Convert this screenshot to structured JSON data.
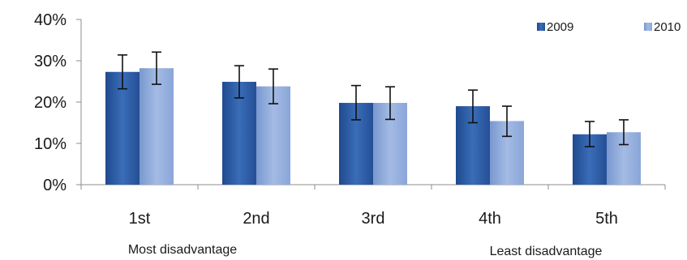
{
  "chart_data": {
    "type": "bar",
    "title": "",
    "xlabel": "",
    "ylabel": "",
    "categories": [
      "1st",
      "2nd",
      "3rd",
      "4th",
      "5th"
    ],
    "series": [
      {
        "name": "2009",
        "color": "#2F5FA8",
        "values": [
          27.3,
          24.9,
          19.8,
          19.0,
          12.2
        ],
        "error_low": [
          23.2,
          21.0,
          15.7,
          15.0,
          9.2
        ],
        "error_high": [
          31.4,
          28.8,
          24.0,
          22.9,
          15.3
        ]
      },
      {
        "name": "2010",
        "color": "#8EA9DB",
        "values": [
          28.2,
          23.8,
          19.8,
          15.4,
          12.7
        ],
        "error_low": [
          24.3,
          19.6,
          15.8,
          11.7,
          9.7
        ],
        "error_high": [
          32.1,
          28.0,
          23.7,
          19.0,
          15.7
        ]
      }
    ],
    "ylim": [
      0,
      40
    ],
    "yticks": [
      0,
      10,
      20,
      30,
      40
    ],
    "ytick_labels": [
      "0%",
      "10%",
      "20%",
      "30%",
      "40%"
    ],
    "grid": false,
    "legend_position": "top-right",
    "annotations": [
      "Most disadvantage",
      "Least disadvantage"
    ]
  }
}
